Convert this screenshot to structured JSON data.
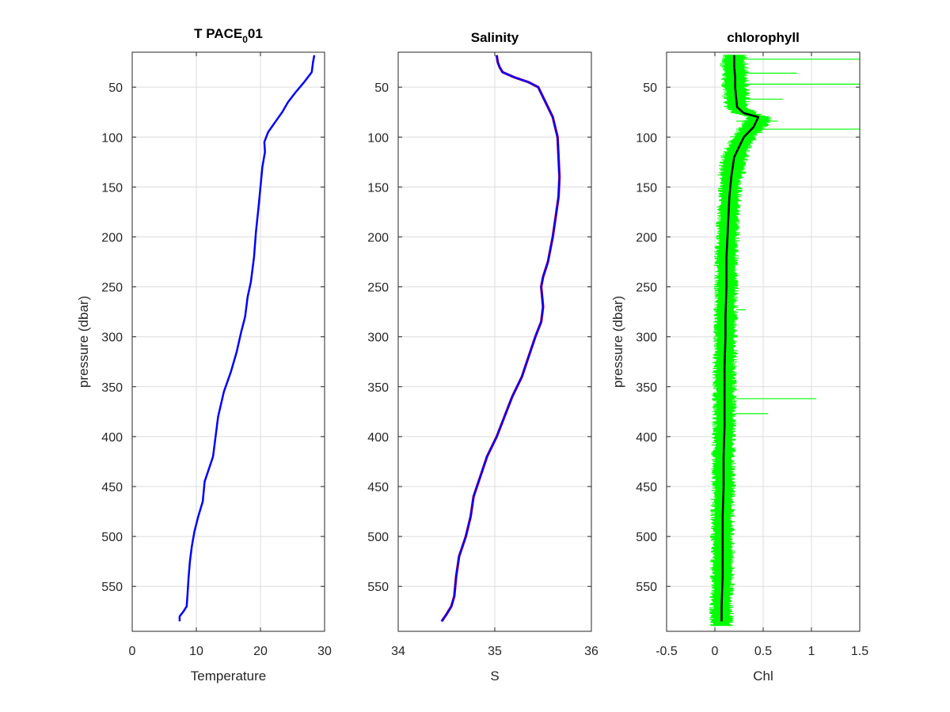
{
  "figure": {
    "background": "#ffffff"
  },
  "chart_data": [
    {
      "type": "line",
      "title": "T PACE",
      "title_subscript": "0",
      "title_suffix": "01",
      "xlabel": "Temperature",
      "ylabel": "pressure (dbar)",
      "xlim": [
        0,
        30
      ],
      "ylim": [
        15,
        595
      ],
      "y_reversed": true,
      "xticks": [
        0,
        10,
        20,
        30
      ],
      "yticks": [
        50,
        100,
        150,
        200,
        250,
        300,
        350,
        400,
        450,
        500,
        550
      ],
      "grid": true,
      "series": [
        {
          "color": "#0000ff",
          "x": [
            28.4,
            28.2,
            28.0,
            26.8,
            25.5,
            24.3,
            23.4,
            22.3,
            21.2,
            20.6,
            20.7,
            20.3,
            20.0,
            19.7,
            19.3,
            19.0,
            18.5,
            18.0,
            17.6,
            17.0,
            16.3,
            15.4,
            14.3,
            13.4,
            13.0,
            12.6,
            11.3,
            11.0,
            10.3,
            9.7,
            9.3,
            9.0,
            8.8,
            8.6,
            8.5,
            8.0,
            7.4,
            7.4
          ],
          "y": [
            18,
            25,
            35,
            45,
            55,
            65,
            75,
            85,
            95,
            105,
            115,
            130,
            150,
            170,
            195,
            220,
            245,
            260,
            280,
            295,
            315,
            335,
            355,
            380,
            400,
            420,
            445,
            465,
            480,
            495,
            510,
            525,
            540,
            560,
            570,
            575,
            580,
            585
          ]
        }
      ]
    },
    {
      "type": "line",
      "title": "Salinity",
      "xlabel": "S",
      "xlim": [
        34,
        36
      ],
      "ylim": [
        15,
        595
      ],
      "y_reversed": true,
      "xticks": [
        34,
        35,
        36
      ],
      "yticks": [
        50,
        100,
        150,
        200,
        250,
        300,
        350,
        400,
        450,
        500,
        550
      ],
      "grid": true,
      "series": [
        {
          "color": "#ff0000",
          "x": [
            35.02,
            35.03,
            35.05,
            35.08,
            35.2,
            35.35,
            35.45,
            35.5,
            35.6,
            35.65,
            35.66,
            35.67,
            35.66,
            35.63,
            35.6,
            35.55,
            35.5,
            35.48,
            35.5,
            35.48,
            35.42,
            35.35,
            35.28,
            35.18,
            35.1,
            35.02,
            34.92,
            34.85,
            34.78,
            34.75,
            34.7,
            34.63,
            34.6,
            34.58,
            34.55,
            34.5,
            34.45
          ],
          "y": [
            18,
            25,
            30,
            35,
            40,
            45,
            50,
            60,
            80,
            100,
            120,
            140,
            160,
            180,
            200,
            225,
            240,
            250,
            270,
            285,
            300,
            320,
            340,
            360,
            380,
            400,
            420,
            440,
            460,
            480,
            500,
            520,
            540,
            560,
            570,
            578,
            585
          ]
        },
        {
          "color": "#0000ff",
          "x": [
            35.02,
            35.03,
            35.05,
            35.08,
            35.2,
            35.35,
            35.45,
            35.5,
            35.6,
            35.65,
            35.66,
            35.67,
            35.66,
            35.63,
            35.6,
            35.55,
            35.5,
            35.48,
            35.5,
            35.48,
            35.42,
            35.35,
            35.28,
            35.18,
            35.1,
            35.02,
            34.92,
            34.85,
            34.78,
            34.75,
            34.7,
            34.63,
            34.6,
            34.58,
            34.55,
            34.5,
            34.45
          ],
          "y": [
            18,
            25,
            30,
            35,
            40,
            45,
            50,
            60,
            80,
            100,
            120,
            140,
            160,
            180,
            200,
            225,
            240,
            250,
            270,
            285,
            300,
            320,
            340,
            360,
            380,
            400,
            420,
            440,
            460,
            480,
            500,
            520,
            540,
            560,
            570,
            578,
            585
          ]
        }
      ]
    },
    {
      "type": "line",
      "title": "chlorophyll",
      "xlabel": "Chl",
      "ylabel": "pressure (dbar)",
      "xlim": [
        -0.5,
        1.5
      ],
      "ylim": [
        15,
        595
      ],
      "y_reversed": true,
      "xticks": [
        -0.5,
        0,
        0.5,
        1,
        1.5
      ],
      "yticks": [
        50,
        100,
        150,
        200,
        250,
        300,
        350,
        400,
        450,
        500,
        550
      ],
      "grid": true,
      "series": [
        {
          "color": "#00ff00",
          "x": [
            0.2,
            0.2,
            0.21,
            0.21,
            0.22,
            0.23,
            0.3,
            0.45,
            0.4,
            0.3,
            0.2,
            0.17,
            0.15,
            0.14,
            0.13,
            0.12,
            0.12,
            0.11,
            0.11,
            0.1,
            0.1,
            0.1,
            0.09,
            0.09,
            0.08,
            0.08,
            0.08,
            0.07,
            0.07
          ],
          "y": [
            18,
            30,
            40,
            50,
            60,
            70,
            76,
            80,
            90,
            100,
            120,
            140,
            160,
            180,
            200,
            220,
            250,
            280,
            300,
            330,
            360,
            390,
            420,
            450,
            480,
            510,
            540,
            570,
            590
          ],
          "spread": 0.13
        },
        {
          "color": "#00ff00",
          "x": [
            1.5,
            0.85,
            1.5,
            0.7,
            1.5,
            0.65,
            0.32,
            1.05,
            0.55
          ],
          "y": [
            22,
            36,
            47,
            62,
            92,
            84,
            273,
            362,
            377
          ],
          "note": ""
        },
        {
          "color": "#000000",
          "x": [
            0.2,
            0.2,
            0.21,
            0.21,
            0.22,
            0.23,
            0.3,
            0.45,
            0.4,
            0.3,
            0.2,
            0.17,
            0.15,
            0.14,
            0.13,
            0.12,
            0.12,
            0.11,
            0.11,
            0.1,
            0.1,
            0.1,
            0.09,
            0.09,
            0.08,
            0.08,
            0.08,
            0.07,
            0.07
          ],
          "y": [
            18,
            30,
            40,
            50,
            60,
            70,
            76,
            80,
            90,
            100,
            120,
            140,
            160,
            180,
            200,
            220,
            250,
            280,
            300,
            330,
            360,
            390,
            420,
            450,
            480,
            510,
            540,
            570,
            585
          ]
        }
      ]
    }
  ]
}
